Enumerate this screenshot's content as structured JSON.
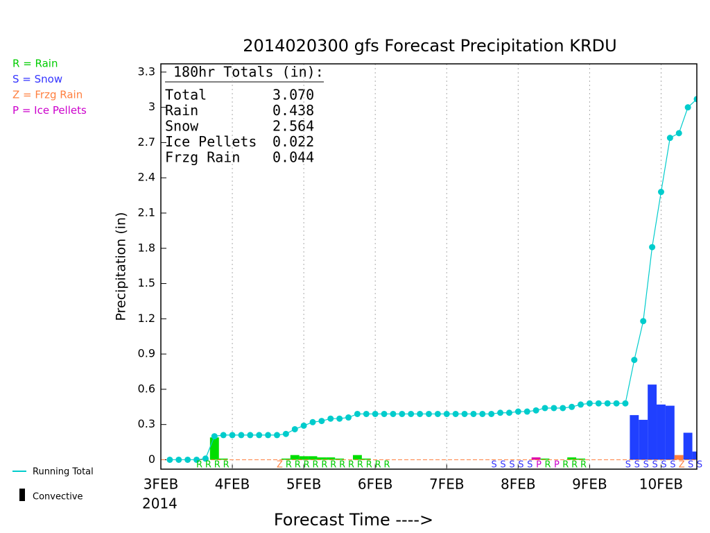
{
  "chart_data": {
    "type": "line",
    "title": "2014020300 gfs Forecast Precipitation KRDU",
    "ylabel": "Precipitation (in)",
    "xlabel": "Forecast Time ---->",
    "x_sublabel": "2014",
    "xlim": [
      0,
      180
    ],
    "ylim": [
      -0.08,
      3.37
    ],
    "yticks": [
      0,
      0.3,
      0.6,
      0.9,
      1.2,
      1.5,
      1.8,
      2.1,
      2.4,
      2.7,
      3,
      3.3
    ],
    "xticks": [
      {
        "value": 0,
        "label": "3FEB"
      },
      {
        "value": 24,
        "label": "4FEB"
      },
      {
        "value": 48,
        "label": "5FEB"
      },
      {
        "value": 72,
        "label": "6FEB"
      },
      {
        "value": 96,
        "label": "7FEB"
      },
      {
        "value": 120,
        "label": "8FEB"
      },
      {
        "value": 144,
        "label": "9FEB"
      },
      {
        "value": 168,
        "label": "10FEB"
      }
    ],
    "grid_x": true,
    "series": [
      {
        "name": "Running Total",
        "color": "#00cccc",
        "x": [
          3,
          6,
          9,
          12,
          15,
          18,
          21,
          24,
          27,
          30,
          33,
          36,
          39,
          42,
          45,
          48,
          51,
          54,
          57,
          60,
          63,
          66,
          69,
          72,
          75,
          78,
          81,
          84,
          87,
          90,
          93,
          96,
          99,
          102,
          105,
          108,
          111,
          114,
          117,
          120,
          123,
          126,
          129,
          132,
          135,
          138,
          141,
          144,
          147,
          150,
          153,
          156,
          159,
          162,
          165,
          168,
          171,
          174,
          177,
          180
        ],
        "values": [
          0,
          0,
          0,
          0,
          0.01,
          0.2,
          0.21,
          0.21,
          0.21,
          0.21,
          0.21,
          0.21,
          0.21,
          0.22,
          0.26,
          0.29,
          0.32,
          0.33,
          0.35,
          0.35,
          0.36,
          0.39,
          0.39,
          0.39,
          0.39,
          0.39,
          0.39,
          0.39,
          0.39,
          0.39,
          0.39,
          0.39,
          0.39,
          0.39,
          0.39,
          0.39,
          0.39,
          0.4,
          0.4,
          0.41,
          0.41,
          0.42,
          0.44,
          0.44,
          0.44,
          0.45,
          0.47,
          0.48,
          0.48,
          0.48,
          0.48,
          0.48,
          0.85,
          1.18,
          1.81,
          2.28,
          2.74,
          2.78,
          3.0,
          3.07
        ]
      }
    ],
    "bars": {
      "x": [
        18,
        21,
        42,
        45,
        48,
        51,
        54,
        57,
        60,
        66,
        69,
        126,
        129,
        138,
        141,
        159,
        162,
        165,
        168,
        171,
        174,
        177,
        180
      ],
      "values": [
        0.19,
        0.01,
        0.01,
        0.04,
        0.03,
        0.03,
        0.02,
        0.02,
        0.01,
        0.04,
        0.01,
        0.02,
        0.01,
        0.02,
        0.01,
        0.38,
        0.34,
        0.64,
        0.47,
        0.46,
        0.04,
        0.23,
        0.07
      ],
      "colors": [
        "#00dd00",
        "#00dd00",
        "#00dd00",
        "#00dd00",
        "#00dd00",
        "#00dd00",
        "#00dd00",
        "#00dd00",
        "#00dd00",
        "#00dd00",
        "#00dd00",
        "#dd00aa",
        "#00dd00",
        "#00dd00",
        "#00dd00",
        "#2040ff",
        "#2040ff",
        "#2040ff",
        "#2040ff",
        "#2040ff",
        "#ff8040",
        "#2040ff",
        "#2040ff"
      ]
    },
    "type_letters": {
      "x": [
        12,
        15,
        18,
        21,
        39,
        42,
        45,
        48,
        51,
        54,
        57,
        60,
        63,
        66,
        69,
        72,
        75,
        111,
        114,
        117,
        120,
        123,
        126,
        129,
        132,
        135,
        138,
        141,
        156,
        159,
        162,
        165,
        168,
        171,
        174,
        177,
        180
      ],
      "labels": [
        "R",
        "R",
        "R",
        "R",
        "Z",
        "R",
        "R",
        "R",
        "R",
        "R",
        "R",
        "R",
        "R",
        "R",
        "R",
        "R",
        "R",
        "S",
        "S",
        "S",
        "S",
        "S",
        "P",
        "R",
        "P",
        "R",
        "R",
        "R",
        "S",
        "S",
        "S",
        "S",
        "S",
        "S",
        "Z",
        "S",
        "S"
      ]
    },
    "type_key": [
      {
        "label": "R = Rain",
        "color": "#00cc00"
      },
      {
        "label": "S = Snow",
        "color": "#3333ff"
      },
      {
        "label": "Z = Frzg Rain",
        "color": "#ff8040"
      },
      {
        "label": "P = Ice Pellets",
        "color": "#cc00cc"
      }
    ],
    "convective_label": "Convective",
    "convective_color": "#000000",
    "totals": {
      "title": "180hr Totals (in):",
      "rows": [
        [
          "Total",
          "3.070"
        ],
        [
          "Rain",
          "0.438"
        ],
        [
          "Snow",
          "2.564"
        ],
        [
          "Ice Pellets",
          "0.022"
        ],
        [
          "Frzg Rain",
          "0.044"
        ]
      ]
    }
  }
}
